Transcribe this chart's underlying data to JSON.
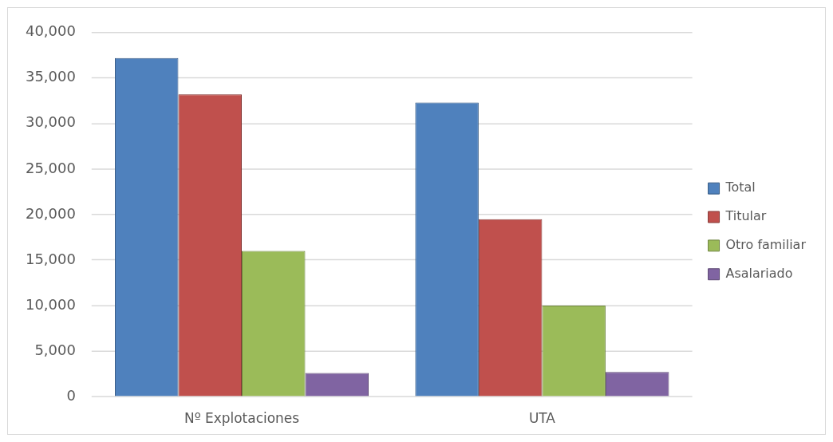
{
  "chart_data": {
    "type": "bar",
    "categories": [
      "Nº Explotaciones",
      "UTA"
    ],
    "series": [
      {
        "name": "Total",
        "color": "#4f81bd",
        "values": [
          37200,
          32300
        ]
      },
      {
        "name": "Titular",
        "color": "#c0504d",
        "values": [
          33200,
          19500
        ]
      },
      {
        "name": "Otro familiar",
        "color": "#9bbb59",
        "values": [
          16000,
          10000
        ]
      },
      {
        "name": "Asalariado",
        "color": "#8064a2",
        "values": [
          2600,
          2700
        ]
      }
    ],
    "ylim": [
      0,
      40000
    ],
    "yticks": [
      0,
      {
        "value": 5000,
        "label": "5,000"
      },
      {
        "value": 10000,
        "label": "10,000"
      },
      {
        "value": 15000,
        "label": "15,000"
      },
      {
        "value": 20000,
        "label": "20,000"
      },
      {
        "value": 25000,
        "label": "25,000"
      },
      {
        "value": 30000,
        "label": "30,000"
      },
      {
        "value": 35000,
        "label": "35,000"
      },
      {
        "value": 40000,
        "label": "40,000"
      }
    ],
    "grid": "y",
    "legend": "right"
  }
}
